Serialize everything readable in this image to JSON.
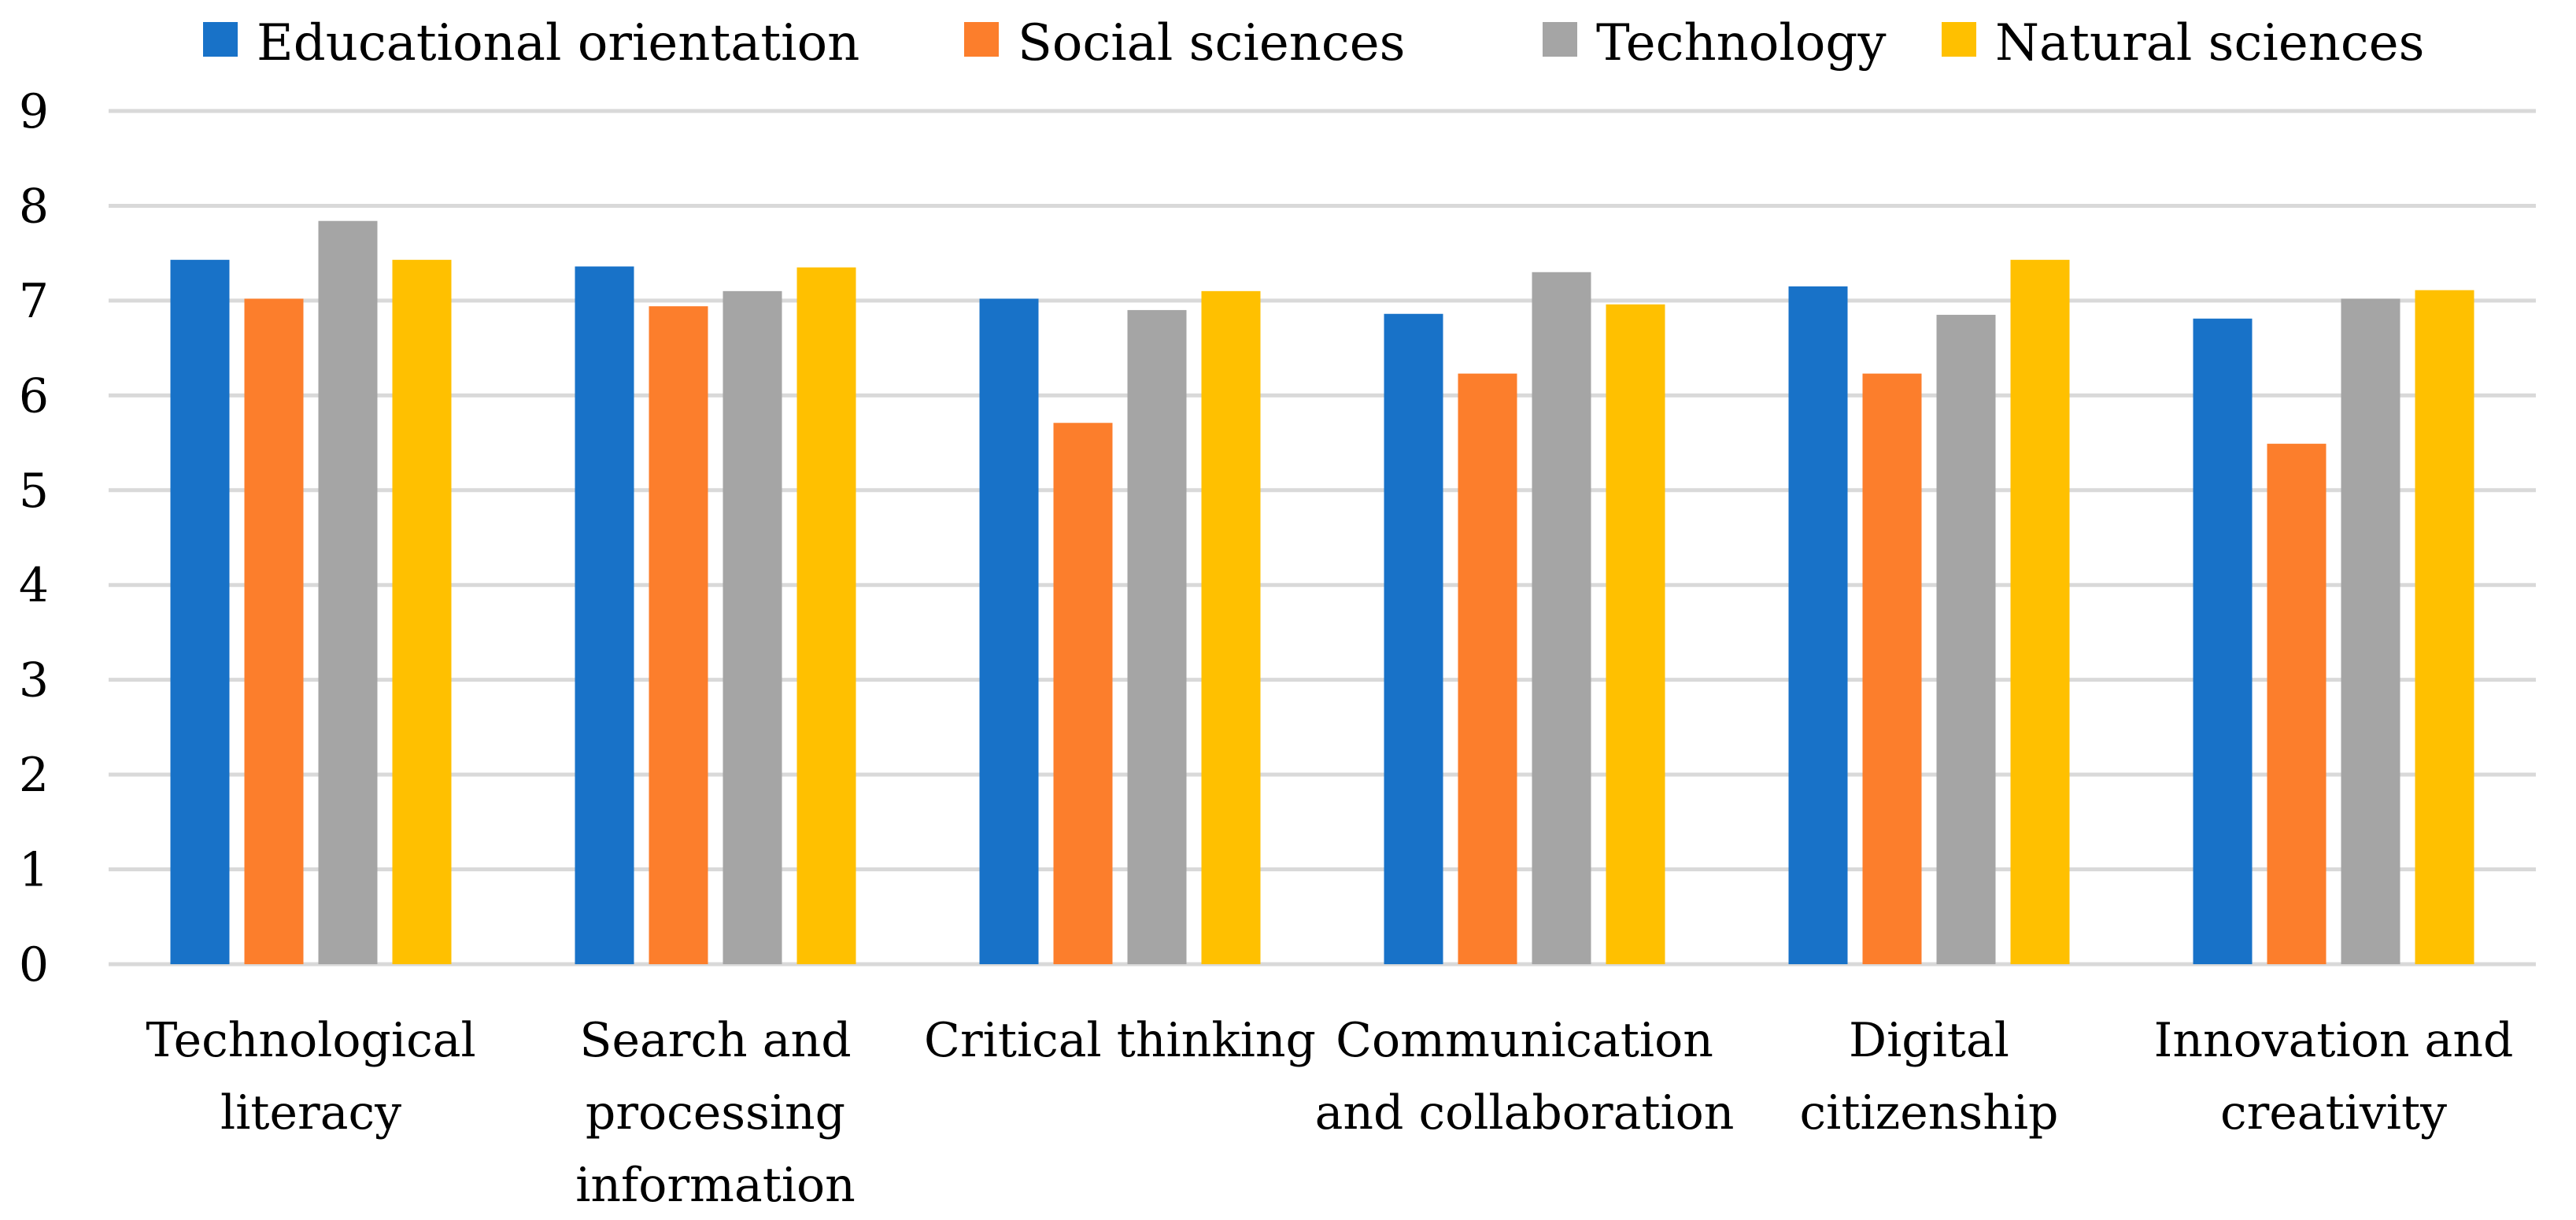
{
  "chart_data": {
    "type": "bar",
    "title": "",
    "xlabel": "",
    "ylabel": "",
    "ylim": [
      0,
      9
    ],
    "y_ticks": [
      "0",
      "1",
      "2",
      "3",
      "4",
      "5",
      "6",
      "7",
      "8",
      "9"
    ],
    "grid": true,
    "legend_position": "top",
    "categories": [
      [
        "Technological",
        "literacy"
      ],
      [
        "Search and",
        "processing",
        "information"
      ],
      [
        "Critical thinking"
      ],
      [
        "Communication",
        "and collaboration"
      ],
      [
        "Digital",
        "citizenship"
      ],
      [
        "Innovation and",
        "creativity"
      ]
    ],
    "series": [
      {
        "name": "Educational orientation",
        "color": "#1872C8",
        "values": [
          7.43,
          7.36,
          7.02,
          6.86,
          7.15,
          6.81
        ]
      },
      {
        "name": "Social sciences",
        "color": "#FC7E2C",
        "values": [
          7.02,
          6.94,
          5.71,
          6.23,
          6.23,
          5.49
        ]
      },
      {
        "name": "Technology",
        "color": "#A5A5A5",
        "values": [
          7.84,
          7.1,
          6.9,
          7.3,
          6.85,
          7.02
        ]
      },
      {
        "name": "Natural sciences",
        "color": "#FFC000",
        "values": [
          7.43,
          7.35,
          7.1,
          6.96,
          7.43,
          7.11
        ]
      }
    ],
    "grid_color": "#D9D9D9"
  }
}
